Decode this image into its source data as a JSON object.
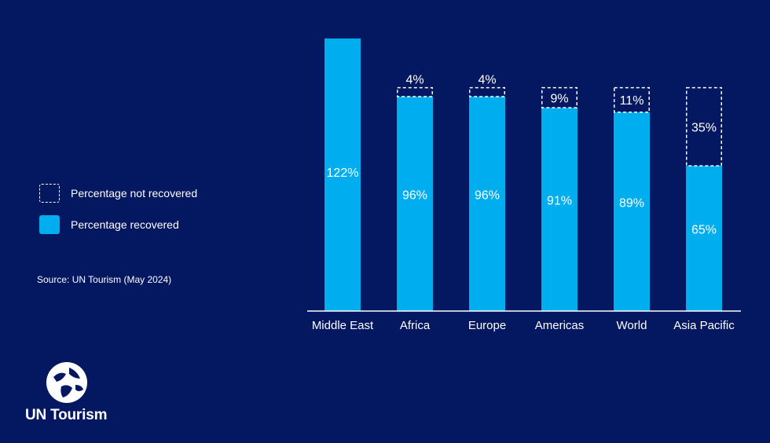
{
  "chart_data": {
    "type": "bar",
    "stacked": true,
    "categories": [
      "Middle East",
      "Africa",
      "Europe",
      "Americas",
      "World",
      "Asia Pacific"
    ],
    "series": [
      {
        "name": "Percentage recovered",
        "values": [
          122,
          96,
          96,
          91,
          89,
          65
        ],
        "labels": [
          "122%",
          "96%",
          "96%",
          "91%",
          "89%",
          "65%"
        ],
        "color": "#00AEEF"
      },
      {
        "name": "Percentage not recovered",
        "values": [
          0,
          4,
          4,
          9,
          11,
          35
        ],
        "labels": [
          "",
          "4%",
          "4%",
          "9%",
          "11%",
          "35%"
        ],
        "style": "dashed-outline"
      }
    ],
    "ylim": [
      0,
      122
    ],
    "title": "",
    "xlabel": "",
    "ylabel": ""
  },
  "legend": {
    "not_recovered": "Percentage not recovered",
    "recovered": "Percentage recovered"
  },
  "source": "Source: UN Tourism (May 2024)",
  "brand": {
    "name": "UN Tourism",
    "background": "#041761",
    "bar_color": "#00AEEF"
  }
}
